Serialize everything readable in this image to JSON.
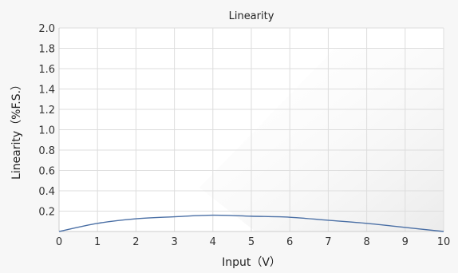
{
  "chart_data": {
    "type": "line",
    "title": "Linearity",
    "xlabel": "Input（V）",
    "ylabel": "Linearity（%F.S.）",
    "xlim": [
      0,
      10
    ],
    "ylim": [
      0,
      2.0
    ],
    "x_ticks": [
      "0",
      "1",
      "2",
      "3",
      "4",
      "5",
      "6",
      "7",
      "8",
      "9",
      "10"
    ],
    "y_ticks": [
      "0.2",
      "0.4",
      "0.6",
      "0.8",
      "1.0",
      "1.2",
      "1.4",
      "1.6",
      "1.8",
      "2.0"
    ],
    "grid": true,
    "series": [
      {
        "color": "#4a6fa5",
        "x": [
          0,
          1,
          2,
          3,
          4,
          5,
          6,
          7,
          8,
          9,
          10
        ],
        "y": [
          0.0,
          0.08,
          0.125,
          0.145,
          0.16,
          0.15,
          0.14,
          0.11,
          0.08,
          0.04,
          0.0
        ]
      }
    ]
  },
  "colors": {
    "background": "#f7f7f7",
    "plot_background": "#ffffff",
    "grid": "#dddddd",
    "axis": "#cccccc",
    "line": "#4a6fa5"
  }
}
